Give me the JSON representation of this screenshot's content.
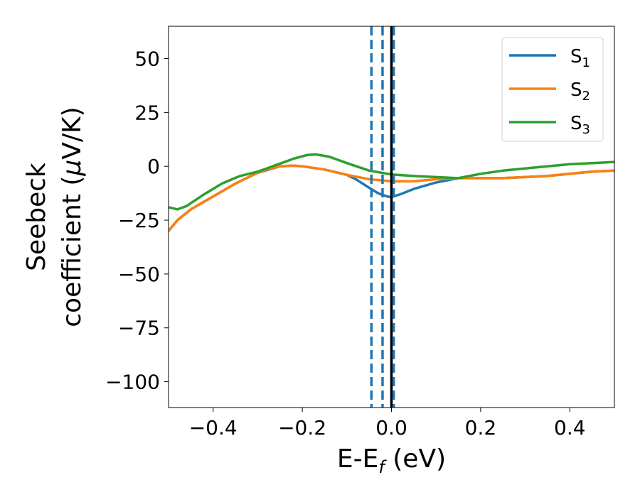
{
  "chart_data": {
    "type": "line",
    "xlabel": {
      "base": "E-E",
      "sub": "f",
      "rest": " (eV)"
    },
    "ylabel": {
      "line1": "Seebeck",
      "line2_text": "coefficient  (",
      "line2_mu": "μ",
      "line2_rest": "V/K)"
    },
    "xlim": [
      -0.5,
      0.5
    ],
    "ylim": [
      -112,
      65
    ],
    "xticks": [
      -0.4,
      -0.2,
      0.0,
      0.2,
      0.4
    ],
    "xtick_labels": [
      "−0.4",
      "−0.2",
      "0.0",
      "0.2",
      "0.4"
    ],
    "yticks": [
      50,
      25,
      0,
      -25,
      -50,
      -75,
      -100
    ],
    "ytick_labels": [
      "50",
      "25",
      "0",
      "−25",
      "−50",
      "−75",
      "−100"
    ],
    "grid": false,
    "legend_position": "top-right",
    "series": [
      {
        "name": "S",
        "sub": "1",
        "color": "#1f77b4",
        "x": [
          -0.5,
          -0.48,
          -0.45,
          -0.4,
          -0.35,
          -0.3,
          -0.25,
          -0.22,
          -0.2,
          -0.15,
          -0.1,
          -0.08,
          -0.05,
          -0.03,
          -0.01,
          0.0,
          0.02,
          0.05,
          0.1,
          0.15,
          0.2,
          0.25,
          0.3,
          0.35,
          0.4,
          0.45,
          0.5
        ],
        "y": [
          -30,
          -25,
          -20,
          -14,
          -8,
          -3,
          0,
          0.3,
          0,
          -1.5,
          -4,
          -6,
          -10,
          -12.5,
          -14,
          -14.3,
          -13,
          -10.5,
          -7.5,
          -5.5,
          -5.5,
          -5.5,
          -5,
          -4.5,
          -3.5,
          -2.5,
          -2
        ]
      },
      {
        "name": "S",
        "sub": "2",
        "color": "#ff7f0e",
        "x": [
          -0.5,
          -0.48,
          -0.45,
          -0.4,
          -0.35,
          -0.3,
          -0.28,
          -0.25,
          -0.22,
          -0.2,
          -0.15,
          -0.1,
          -0.05,
          0.0,
          0.05,
          0.1,
          0.15,
          0.2,
          0.25,
          0.3,
          0.35,
          0.4,
          0.45,
          0.5
        ],
        "y": [
          -30,
          -25,
          -20,
          -14,
          -8,
          -3,
          -1.5,
          0,
          0.3,
          0,
          -1.5,
          -4,
          -6,
          -7,
          -7,
          -6,
          -5.5,
          -5.5,
          -5.5,
          -5,
          -4.5,
          -3.5,
          -2.5,
          -2
        ]
      },
      {
        "name": "S",
        "sub": "3",
        "color": "#2ca02c",
        "x": [
          -0.5,
          -0.48,
          -0.46,
          -0.42,
          -0.38,
          -0.34,
          -0.3,
          -0.26,
          -0.22,
          -0.19,
          -0.17,
          -0.14,
          -0.1,
          -0.05,
          0.0,
          0.05,
          0.1,
          0.15,
          0.2,
          0.25,
          0.3,
          0.35,
          0.4,
          0.45,
          0.5
        ],
        "y": [
          -19,
          -20,
          -18.5,
          -13,
          -8,
          -4.5,
          -2.5,
          0.5,
          3.5,
          5.2,
          5.5,
          4.5,
          1.5,
          -2,
          -3.8,
          -4.5,
          -5,
          -5.5,
          -3.5,
          -2,
          -1,
          0,
          1,
          1.5,
          2
        ]
      }
    ],
    "vlines": [
      {
        "x": -0.045,
        "style": "dashed",
        "color": "#1f77b4"
      },
      {
        "x": -0.02,
        "style": "dashed",
        "color": "#1f77b4"
      },
      {
        "x": 0.0,
        "style": "solid",
        "color": "#000000"
      },
      {
        "x": 0.005,
        "style": "dashed",
        "color": "#1f77b4"
      }
    ]
  }
}
